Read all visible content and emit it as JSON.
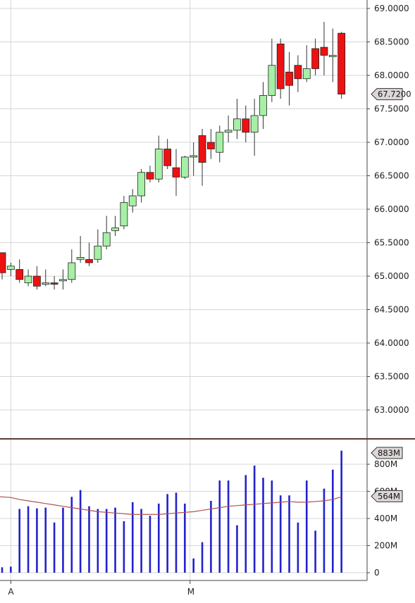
{
  "chart_data": [
    {
      "type": "candlestick",
      "colors": {
        "up": "#a6f0a6",
        "down": "#ee1111",
        "wick": "#333333",
        "grid": "#d6d6d6"
      },
      "ylim": [
        62.6,
        69.1
      ],
      "y_ticks": [
        "63.0000",
        "63.5000",
        "64.0000",
        "64.5000",
        "65.0000",
        "65.5000",
        "66.0000",
        "66.5000",
        "67.0000",
        "67.5000",
        "68.0000",
        "68.5000",
        "69.0000"
      ],
      "y_tick_values": [
        63.0,
        63.5,
        64.0,
        64.5,
        65.0,
        65.5,
        66.0,
        66.5,
        67.0,
        67.5,
        68.0,
        68.5,
        69.0
      ],
      "last_price_label": "67.7200",
      "last_price": 67.72,
      "candles": [
        {
          "o": 65.35,
          "h": 65.35,
          "l": 64.95,
          "c": 65.05
        },
        {
          "o": 65.1,
          "h": 65.2,
          "l": 65.0,
          "c": 65.15
        },
        {
          "o": 65.1,
          "h": 65.25,
          "l": 64.9,
          "c": 64.95
        },
        {
          "o": 64.9,
          "h": 65.1,
          "l": 64.85,
          "c": 65.0
        },
        {
          "o": 65.0,
          "h": 65.15,
          "l": 64.8,
          "c": 64.85
        },
        {
          "o": 64.9,
          "h": 65.1,
          "l": 64.85,
          "c": 64.9
        },
        {
          "o": 64.9,
          "h": 65.0,
          "l": 64.8,
          "c": 64.88
        },
        {
          "o": 64.95,
          "h": 65.1,
          "l": 64.8,
          "c": 64.95
        },
        {
          "o": 64.95,
          "h": 65.4,
          "l": 64.9,
          "c": 65.2
        },
        {
          "o": 65.25,
          "h": 65.6,
          "l": 65.2,
          "c": 65.28
        },
        {
          "o": 65.25,
          "h": 65.5,
          "l": 65.15,
          "c": 65.2
        },
        {
          "o": 65.25,
          "h": 65.7,
          "l": 65.2,
          "c": 65.45
        },
        {
          "o": 65.45,
          "h": 65.9,
          "l": 65.4,
          "c": 65.65
        },
        {
          "o": 65.68,
          "h": 65.9,
          "l": 65.6,
          "c": 65.72
        },
        {
          "o": 65.75,
          "h": 66.2,
          "l": 65.7,
          "c": 66.1
        },
        {
          "o": 66.05,
          "h": 66.3,
          "l": 65.95,
          "c": 66.2
        },
        {
          "o": 66.2,
          "h": 66.6,
          "l": 66.1,
          "c": 66.55
        },
        {
          "o": 66.55,
          "h": 66.65,
          "l": 66.4,
          "c": 66.45
        },
        {
          "o": 66.45,
          "h": 67.1,
          "l": 66.4,
          "c": 66.9
        },
        {
          "o": 66.9,
          "h": 67.05,
          "l": 66.6,
          "c": 66.65
        },
        {
          "o": 66.62,
          "h": 66.9,
          "l": 66.2,
          "c": 66.48
        },
        {
          "o": 66.48,
          "h": 66.8,
          "l": 66.45,
          "c": 66.78
        },
        {
          "o": 66.78,
          "h": 67.0,
          "l": 66.5,
          "c": 66.8
        },
        {
          "o": 67.1,
          "h": 67.2,
          "l": 66.35,
          "c": 66.7
        },
        {
          "o": 67.0,
          "h": 67.2,
          "l": 66.75,
          "c": 66.9
        },
        {
          "o": 66.85,
          "h": 67.25,
          "l": 66.7,
          "c": 67.15
        },
        {
          "o": 67.15,
          "h": 67.4,
          "l": 67.0,
          "c": 67.18
        },
        {
          "o": 67.18,
          "h": 67.65,
          "l": 67.05,
          "c": 67.35
        },
        {
          "o": 67.35,
          "h": 67.55,
          "l": 67.0,
          "c": 67.15
        },
        {
          "o": 67.15,
          "h": 67.65,
          "l": 66.8,
          "c": 67.4
        },
        {
          "o": 67.4,
          "h": 67.9,
          "l": 67.2,
          "c": 67.7
        },
        {
          "o": 67.7,
          "h": 68.55,
          "l": 67.6,
          "c": 68.15
        },
        {
          "o": 68.47,
          "h": 68.55,
          "l": 67.65,
          "c": 67.8
        },
        {
          "o": 68.05,
          "h": 68.35,
          "l": 67.55,
          "c": 67.85
        },
        {
          "o": 68.15,
          "h": 68.3,
          "l": 67.75,
          "c": 67.95
        },
        {
          "o": 67.95,
          "h": 68.45,
          "l": 67.9,
          "c": 68.1
        },
        {
          "o": 68.4,
          "h": 68.55,
          "l": 68.0,
          "c": 68.1
        },
        {
          "o": 68.42,
          "h": 68.8,
          "l": 68.0,
          "c": 68.3
        },
        {
          "o": 68.3,
          "h": 68.7,
          "l": 67.9,
          "c": 68.3
        },
        {
          "o": 68.63,
          "h": 68.65,
          "l": 67.65,
          "c": 67.72
        }
      ],
      "x_labels": [
        {
          "label": "A",
          "index": 1
        },
        {
          "label": "M",
          "index": 21.6
        }
      ]
    },
    {
      "type": "bar",
      "ylim": [
        0,
        920
      ],
      "y_ticks": [
        "0",
        "200M",
        "400M",
        "600M",
        "800M"
      ],
      "y_tick_values": [
        0,
        200,
        400,
        600,
        800
      ],
      "volumes": [
        40,
        45,
        470,
        490,
        475,
        480,
        370,
        480,
        560,
        610,
        490,
        470,
        470,
        480,
        380,
        520,
        470,
        420,
        510,
        580,
        590,
        510,
        105,
        225,
        530,
        680,
        680,
        350,
        720,
        790,
        700,
        680,
        570,
        570,
        370,
        680,
        310,
        620,
        760,
        900
      ],
      "moving_average": [
        560,
        555,
        540,
        530,
        520,
        510,
        500,
        490,
        480,
        470,
        460,
        450,
        445,
        440,
        435,
        430,
        430,
        430,
        430,
        435,
        440,
        445,
        450,
        460,
        470,
        480,
        490,
        495,
        500,
        505,
        510,
        515,
        520,
        525,
        520,
        520,
        525,
        530,
        540,
        560
      ],
      "current_volume_label": "883M",
      "current_volume": 883,
      "ma_label": "564M",
      "ma_value": 564,
      "bar_color": "#2222cc",
      "ma_color": "#b05050"
    }
  ]
}
